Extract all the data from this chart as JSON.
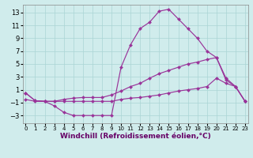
{
  "background_color": "#d0ecec",
  "grid_color": "#aad4d4",
  "line_color": "#993399",
  "xlabel": "Windchill (Refroidissement éolien,°C)",
  "xlabel_fontsize": 6.5,
  "xtick_fontsize": 5,
  "ytick_fontsize": 6,
  "xticks": [
    0,
    1,
    2,
    3,
    4,
    5,
    6,
    7,
    8,
    9,
    10,
    11,
    12,
    13,
    14,
    15,
    16,
    17,
    18,
    19,
    20,
    21,
    22,
    23
  ],
  "yticks": [
    -3,
    -1,
    1,
    3,
    5,
    7,
    9,
    11,
    13
  ],
  "xlim": [
    -0.3,
    23.3
  ],
  "ylim": [
    -4.2,
    14.2
  ],
  "lines": [
    {
      "x": [
        0,
        1,
        2,
        3,
        4,
        5,
        6,
        7,
        8,
        9,
        10,
        11,
        12,
        13,
        14,
        15,
        16,
        17,
        18,
        19,
        20,
        21,
        22,
        23
      ],
      "y": [
        0.5,
        -0.7,
        -0.8,
        -1.5,
        -2.5,
        -3.0,
        -3.0,
        -3.0,
        -3.0,
        -3.0,
        4.5,
        8.0,
        10.5,
        11.5,
        13.2,
        13.5,
        12.0,
        10.5,
        9.0,
        7.0,
        6.0,
        2.5,
        1.5,
        -0.8
      ],
      "markers": true
    },
    {
      "x": [
        0,
        1,
        2,
        3,
        4,
        5,
        6,
        7,
        8,
        9,
        10,
        11,
        12,
        13,
        14,
        15,
        16,
        17,
        18,
        19,
        20,
        21,
        22,
        23
      ],
      "y": [
        0.5,
        -0.7,
        -0.8,
        -0.8,
        -0.5,
        -0.3,
        -0.2,
        -0.2,
        -0.2,
        0.2,
        0.8,
        1.5,
        2.0,
        2.8,
        3.5,
        4.0,
        4.5,
        5.0,
        5.3,
        5.7,
        6.0,
        2.8,
        1.5,
        -0.8
      ],
      "markers": true
    },
    {
      "x": [
        0,
        1,
        2,
        3,
        4,
        5,
        6,
        7,
        8,
        9,
        10,
        11,
        12,
        13,
        14,
        15,
        16,
        17,
        18,
        19,
        20,
        21,
        22,
        23
      ],
      "y": [
        -0.5,
        -0.8,
        -0.8,
        -0.8,
        -0.8,
        -0.8,
        -0.8,
        -0.8,
        -0.8,
        -0.8,
        -0.5,
        -0.3,
        -0.2,
        0.0,
        0.2,
        0.5,
        0.8,
        1.0,
        1.2,
        1.5,
        2.8,
        2.0,
        1.5,
        -0.8
      ],
      "markers": true
    }
  ]
}
